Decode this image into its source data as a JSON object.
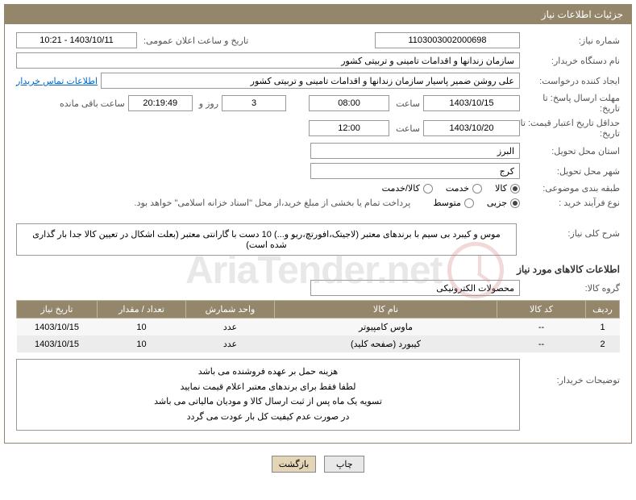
{
  "header": {
    "title": "جزئیات اطلاعات نیاز"
  },
  "fields": {
    "need_no_lbl": "شماره نیاز:",
    "need_no": "1103003002000698",
    "announce_lbl": "تاریخ و ساعت اعلان عمومی:",
    "announce_val": "1403/10/11 - 10:21",
    "buyer_org_lbl": "نام دستگاه خریدار:",
    "buyer_org": "سازمان زندانها و اقدامات تامینی و تربیتی کشور",
    "requester_lbl": "ایجاد کننده درخواست:",
    "requester": "علی روشن ضمیر پاسیار سازمان زندانها و اقدامات تامینی و تربیتی کشور",
    "contact_link": "اطلاعات تماس خریدار",
    "deadline_lbl_1": "مهلت ارسال پاسخ: تا",
    "deadline_lbl_2": "تاریخ:",
    "deadline_date": "1403/10/15",
    "time_lbl": "ساعت",
    "deadline_time": "08:00",
    "days_remaining": "3",
    "days_and": "روز و",
    "time_remaining": "20:19:49",
    "time_remaining_lbl": "ساعت باقی مانده",
    "price_valid_lbl_1": "حداقل تاریخ اعتبار قیمت: تا",
    "price_valid_lbl_2": "تاریخ:",
    "price_valid_date": "1403/10/20",
    "price_valid_time": "12:00",
    "province_lbl": "استان محل تحویل:",
    "province": "البرز",
    "city_lbl": "شهر محل تحویل:",
    "city": "کرج",
    "category_lbl": "طبقه بندی موضوعی:",
    "cat_opts": {
      "o1": "کالا",
      "o2": "خدمت",
      "o3": "کالا/خدمت"
    },
    "process_lbl": "نوع فرآیند خرید :",
    "proc_opts": {
      "o1": "جزیی",
      "o2": "متوسط"
    },
    "treasury_note": "پرداخت تمام یا بخشی از مبلغ خرید،از محل \"اسناد خزانه اسلامی\" خواهد بود.",
    "desc_lbl": "شرح کلی نیاز:",
    "desc_text": "موس و کیبرد بی سیم با برندهای معتبر (لاجیتک،افورتچ،ریو و...) 10 دست با گارانتی معتبر (بعلت اشکال در تعیین کالا جدا بار گذاری شده است)",
    "goods_section": "اطلاعات کالاهای مورد نیاز",
    "group_lbl": "گروه کالا:",
    "group_val": "محصولات الکترونیکی",
    "buyer_notes_lbl": "توضیحات خریدار:",
    "buyer_notes_l1": "هزینه حمل بر عهده فروشنده می باشد",
    "buyer_notes_l2": "لطفا فقط برای برندهای معتبر اعلام قیمت نمایید",
    "buyer_notes_l3": "تسویه یک ماه پس از ثبت ارسال کالا و مودیان مالیاتی می باشد",
    "buyer_notes_l4": "در صورت عدم کیفیت کل بار عودت می گردد"
  },
  "table": {
    "headers": {
      "row": "ردیف",
      "code": "کد کالا",
      "name": "نام کالا",
      "unit": "واحد شمارش",
      "qty": "تعداد / مقدار",
      "date": "تاریخ نیاز"
    },
    "rows": [
      {
        "row": "1",
        "code": "--",
        "name": "ماوس کامپیوتر",
        "unit": "عدد",
        "qty": "10",
        "date": "1403/10/15"
      },
      {
        "row": "2",
        "code": "--",
        "name": "کیبورد (صفحه کلید)",
        "unit": "عدد",
        "qty": "10",
        "date": "1403/10/15"
      }
    ]
  },
  "buttons": {
    "print": "چاپ",
    "back": "بازگشت"
  },
  "watermark": "AriaTender.net",
  "colors": {
    "accent": "#94866a",
    "link": "#0066cc"
  }
}
